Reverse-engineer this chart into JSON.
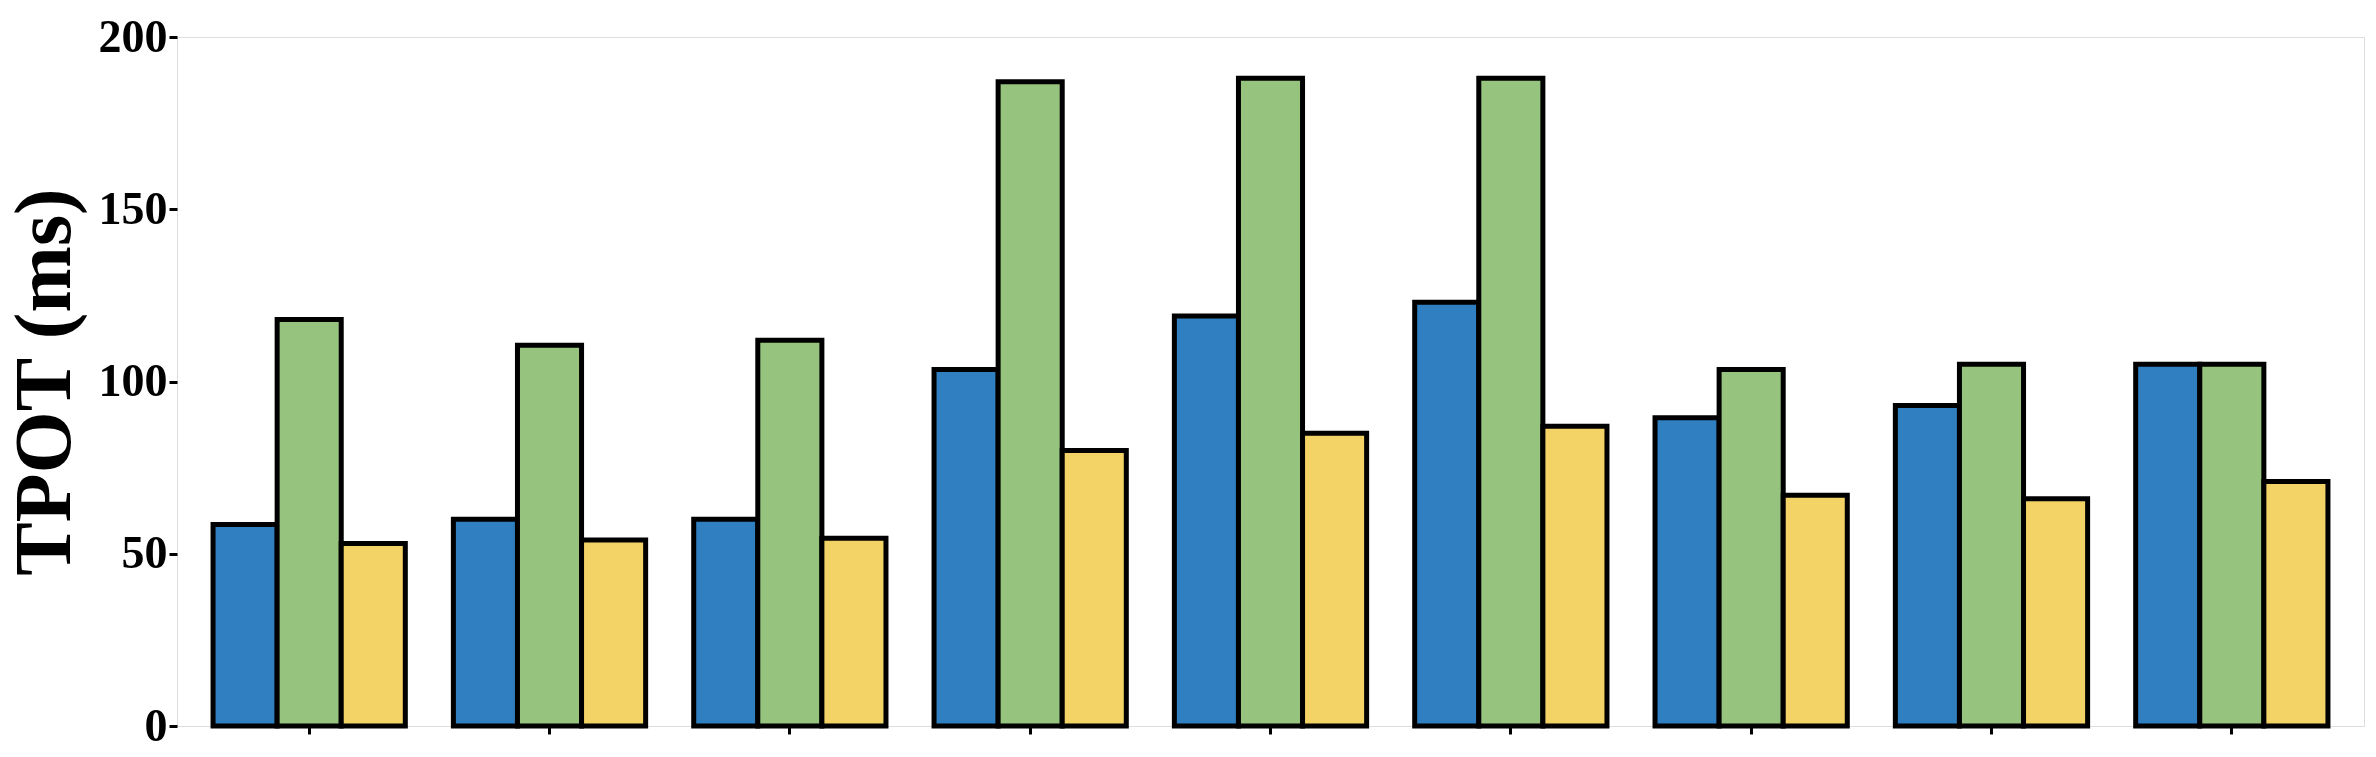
{
  "chart_data": {
    "type": "bar",
    "ylabel": "TPOT (ms)",
    "categories": [
      null,
      null,
      null,
      null,
      null,
      null,
      null,
      null,
      null
    ],
    "series": [
      {
        "color": "#2f7fc1",
        "values": [
          58.5,
          60,
          60,
          103.5,
          119,
          123,
          89.5,
          93,
          105
        ]
      },
      {
        "color": "#96c37d",
        "values": [
          118,
          110.5,
          112,
          187,
          188,
          188,
          103.5,
          105,
          105
        ]
      },
      {
        "color": "#f3d266",
        "values": [
          53,
          54,
          54.5,
          80,
          85,
          87,
          67,
          66,
          71
        ]
      }
    ],
    "ylim": [
      0,
      200
    ],
    "yticks": [
      0,
      50,
      100,
      150,
      200
    ],
    "grid": false,
    "legend": false
  }
}
